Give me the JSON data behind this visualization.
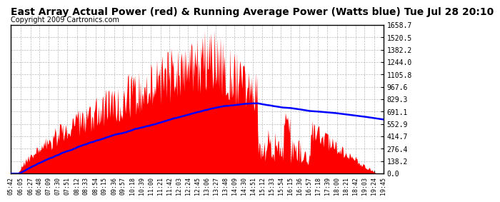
{
  "title": "East Array Actual Power (red) & Running Average Power (Watts blue) Tue Jul 28 20:10",
  "copyright": "Copyright 2009 Cartronics.com",
  "y_ticks": [
    0.0,
    138.2,
    276.4,
    414.7,
    552.9,
    691.1,
    829.3,
    967.6,
    1105.8,
    1244.0,
    1382.2,
    1520.5,
    1658.7
  ],
  "ymax": 1658.7,
  "x_labels": [
    "05:42",
    "06:05",
    "06:27",
    "06:48",
    "07:09",
    "07:30",
    "07:51",
    "08:12",
    "08:33",
    "08:54",
    "09:15",
    "09:36",
    "09:57",
    "10:18",
    "10:39",
    "11:00",
    "11:21",
    "11:42",
    "12:03",
    "12:24",
    "12:45",
    "13:06",
    "13:27",
    "13:48",
    "14:09",
    "14:30",
    "14:51",
    "15:12",
    "15:33",
    "15:54",
    "16:15",
    "16:36",
    "16:57",
    "17:18",
    "17:39",
    "18:00",
    "18:21",
    "18:42",
    "19:03",
    "19:24",
    "19:45"
  ],
  "bar_color": "#FF0000",
  "line_color": "#0000FF",
  "bg_color": "#FFFFFF",
  "grid_color": "#AAAAAA",
  "title_fontsize": 10,
  "copyright_fontsize": 7
}
